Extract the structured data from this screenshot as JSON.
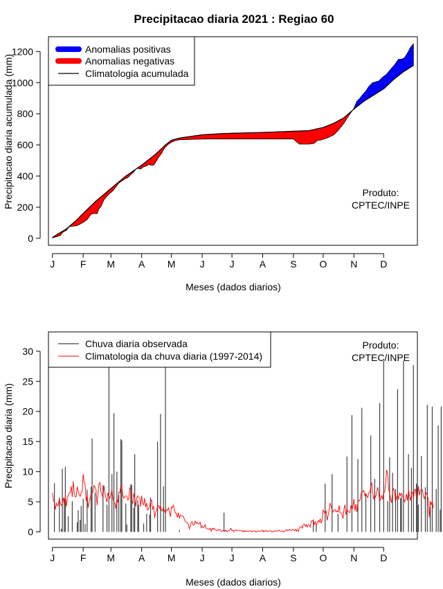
{
  "figure_title": "Precipitacao diaria 2021 : Regiao 60",
  "watermark": {
    "line1": "Produto:",
    "line2": "CPTEC/INPE"
  },
  "colors": {
    "positive": "#0000ff",
    "negative": "#ff0000",
    "climatology_line": "#000000",
    "observed_bars": "#404040",
    "daily_climatology": "#ff0000"
  },
  "chart_data": [
    {
      "type": "area",
      "id": "top",
      "ylabel": "Precipitacao diaria acumulada (mm)",
      "xlabel": "Meses (dados diarios)",
      "x_ticks": [
        "J",
        "F",
        "M",
        "A",
        "M",
        "J",
        "J",
        "A",
        "S",
        "O",
        "N",
        "D"
      ],
      "x_tick_days": [
        1,
        32,
        60,
        91,
        121,
        152,
        182,
        213,
        244,
        274,
        305,
        335
      ],
      "xlim": [
        -3,
        369
      ],
      "ylim": [
        -45,
        1295
      ],
      "y_ticks": [
        0,
        200,
        400,
        600,
        800,
        1000,
        1200
      ],
      "legend": [
        {
          "label": "Anomalias positivas",
          "kind": "positive"
        },
        {
          "label": "Anomalias negativas",
          "kind": "negative"
        },
        {
          "label": "Climatologia acumulada",
          "kind": "line"
        }
      ],
      "climatology_points": [
        [
          1,
          5
        ],
        [
          5,
          22
        ],
        [
          15,
          60
        ],
        [
          25,
          115
        ],
        [
          32,
          160
        ],
        [
          45,
          240
        ],
        [
          60,
          320
        ],
        [
          75,
          400
        ],
        [
          91,
          470
        ],
        [
          105,
          540
        ],
        [
          115,
          600
        ],
        [
          121,
          630
        ],
        [
          130,
          645
        ],
        [
          152,
          665
        ],
        [
          170,
          672
        ],
        [
          182,
          675
        ],
        [
          213,
          680
        ],
        [
          244,
          688
        ],
        [
          260,
          692
        ],
        [
          274,
          712
        ],
        [
          285,
          740
        ],
        [
          295,
          775
        ],
        [
          305,
          830
        ],
        [
          315,
          880
        ],
        [
          325,
          920
        ],
        [
          335,
          960
        ],
        [
          345,
          1020
        ],
        [
          355,
          1070
        ],
        [
          365,
          1110
        ]
      ],
      "observed_points": [
        [
          1,
          3
        ],
        [
          5,
          10
        ],
        [
          9,
          18
        ],
        [
          12,
          42
        ],
        [
          15,
          50
        ],
        [
          18,
          75
        ],
        [
          22,
          78
        ],
        [
          26,
          82
        ],
        [
          30,
          95
        ],
        [
          32,
          102
        ],
        [
          36,
          120
        ],
        [
          40,
          155
        ],
        [
          43,
          160
        ],
        [
          46,
          158
        ],
        [
          48,
          190
        ],
        [
          50,
          205
        ],
        [
          53,
          248
        ],
        [
          56,
          270
        ],
        [
          59,
          290
        ],
        [
          62,
          305
        ],
        [
          65,
          330
        ],
        [
          68,
          355
        ],
        [
          71,
          368
        ],
        [
          74,
          382
        ],
        [
          77,
          390
        ],
        [
          80,
          410
        ],
        [
          83,
          425
        ],
        [
          85,
          445
        ],
        [
          87,
          450
        ],
        [
          90,
          445
        ],
        [
          93,
          460
        ],
        [
          96,
          465
        ],
        [
          98,
          475
        ],
        [
          100,
          470
        ],
        [
          103,
          470
        ],
        [
          105,
          488
        ],
        [
          108,
          520
        ],
        [
          111,
          545
        ],
        [
          114,
          580
        ],
        [
          118,
          605
        ],
        [
          122,
          620
        ],
        [
          126,
          630
        ],
        [
          130,
          633
        ],
        [
          140,
          635
        ],
        [
          150,
          637
        ],
        [
          160,
          638
        ],
        [
          170,
          638
        ],
        [
          182,
          638
        ],
        [
          200,
          638
        ],
        [
          213,
          638
        ],
        [
          230,
          638
        ],
        [
          244,
          638
        ],
        [
          250,
          605
        ],
        [
          260,
          605
        ],
        [
          265,
          610
        ],
        [
          268,
          628
        ],
        [
          272,
          632
        ],
        [
          276,
          640
        ],
        [
          280,
          650
        ],
        [
          285,
          666
        ],
        [
          290,
          700
        ],
        [
          295,
          740
        ],
        [
          300,
          790
        ],
        [
          305,
          835
        ],
        [
          308,
          880
        ],
        [
          311,
          900
        ],
        [
          314,
          925
        ],
        [
          317,
          945
        ],
        [
          320,
          975
        ],
        [
          324,
          1000
        ],
        [
          327,
          1005
        ],
        [
          330,
          1010
        ],
        [
          334,
          1035
        ],
        [
          338,
          1055
        ],
        [
          342,
          1085
        ],
        [
          346,
          1115
        ],
        [
          350,
          1150
        ],
        [
          353,
          1150
        ],
        [
          356,
          1160
        ],
        [
          359,
          1190
        ],
        [
          362,
          1225
        ],
        [
          365,
          1250
        ]
      ]
    },
    {
      "type": "bar",
      "id": "bottom",
      "ylabel": "Precipitacao diaria (mm)",
      "xlabel": "Meses (dados diarios)",
      "x_ticks": [
        "J",
        "F",
        "M",
        "A",
        "M",
        "J",
        "J",
        "A",
        "S",
        "O",
        "N",
        "D"
      ],
      "x_tick_days": [
        1,
        32,
        60,
        91,
        121,
        152,
        182,
        213,
        244,
        274,
        305,
        335
      ],
      "xlim": [
        -3,
        369
      ],
      "ylim": [
        -1.2,
        33.2
      ],
      "y_ticks": [
        0,
        5,
        10,
        15,
        20,
        25,
        30
      ],
      "legend": [
        {
          "label": "Chuva diaria observada",
          "kind": "bars"
        },
        {
          "label": "Climatologia da chuva diaria (1997-2014)",
          "kind": "clim"
        }
      ],
      "observed_daily": [
        0,
        0,
        8.1,
        0,
        0,
        0,
        0,
        5.7,
        0,
        0.5,
        10.5,
        0,
        5.5,
        10.8,
        0,
        0,
        2.6,
        0,
        0,
        0,
        5.1,
        0,
        0,
        0,
        0,
        1.6,
        3.6,
        0,
        2.0,
        4.3,
        0,
        5.5,
        0,
        1.3,
        0,
        7.0,
        0,
        0,
        0,
        7.5,
        15.5,
        0,
        0,
        6.5,
        0,
        0,
        0,
        0,
        0,
        0,
        0,
        7.8,
        0,
        0,
        0,
        4.5,
        0,
        29.0,
        0,
        0,
        9.6,
        0,
        19.7,
        0,
        0,
        10.0,
        0,
        6.1,
        0,
        15.4,
        15.2,
        0,
        0,
        0,
        4.7,
        1.2,
        0,
        0,
        0,
        7.9,
        7.8,
        0,
        4.0,
        12.9,
        0,
        0,
        5.2,
        4.5,
        0,
        0,
        0,
        0,
        1.4,
        0,
        0,
        3.0,
        0,
        0,
        2.9,
        5.7,
        0,
        0,
        0,
        0,
        0,
        0,
        15.0,
        0,
        0,
        19.6,
        0,
        0,
        7.6,
        0,
        28.3,
        0,
        0,
        0,
        0,
        0,
        0,
        0,
        0,
        0,
        0,
        0,
        0,
        0,
        0.3,
        0,
        0,
        0,
        0,
        0,
        0,
        0,
        0,
        0,
        0,
        0,
        0,
        0,
        0,
        0,
        0,
        0,
        0,
        0,
        0,
        0,
        0,
        0,
        0,
        0,
        0,
        0,
        0,
        0,
        0,
        0,
        0,
        0,
        0,
        0,
        0,
        0,
        0,
        0,
        0,
        0,
        0,
        0,
        0,
        3.2,
        0,
        0,
        0,
        0,
        0,
        0,
        0,
        0,
        0,
        0,
        0,
        0,
        0,
        0,
        0,
        0,
        0,
        0,
        0,
        0,
        0,
        0,
        0,
        0,
        0,
        0,
        0,
        0,
        0,
        0,
        0,
        0,
        0,
        0,
        0,
        0,
        0,
        0,
        0,
        0,
        0,
        0,
        0,
        0,
        0,
        0,
        0,
        0,
        0,
        0,
        0,
        0,
        0,
        0,
        0,
        0,
        0,
        0,
        0,
        0,
        0,
        0,
        0,
        0,
        0,
        0,
        0,
        0,
        0,
        0,
        0,
        0,
        0,
        0,
        0,
        0,
        0,
        0,
        0,
        0,
        0,
        0,
        0,
        0,
        0,
        0,
        0,
        0,
        0,
        1.8,
        0,
        0,
        1.0,
        0,
        0,
        0,
        0,
        0,
        0,
        0,
        0,
        8.0,
        0,
        0,
        0,
        0,
        0,
        0,
        9.6,
        0,
        0,
        0,
        0,
        0,
        3.0,
        0,
        0,
        0,
        0,
        0,
        0,
        0,
        0,
        12.5,
        0,
        0,
        0,
        0,
        19.4,
        0,
        0,
        0,
        0,
        0,
        12.1,
        0,
        0,
        0,
        20.6,
        0,
        0,
        0,
        6.4,
        0,
        0,
        0,
        0,
        16.0,
        0,
        0,
        0,
        8.8,
        0,
        0,
        0,
        0,
        21.4,
        0,
        0,
        0,
        28.4,
        0,
        0,
        0,
        5.1,
        0,
        12.4,
        0,
        0,
        9.8,
        0,
        0,
        7.1,
        0,
        23.7,
        0,
        0,
        5.6,
        5.9,
        0,
        28.4,
        0,
        0,
        0,
        0,
        12.9,
        0,
        0,
        10.6,
        0,
        27.7,
        0,
        0,
        8.0,
        0,
        4.5,
        0,
        0,
        12.6,
        0,
        0,
        0,
        7.4,
        0,
        21.1,
        0,
        0,
        4.2,
        0,
        20.8,
        0,
        0,
        0,
        7.1,
        0,
        17.7,
        0,
        3.7,
        20.8,
        0,
        0
      ],
      "climatology_daily": [
        6.5,
        5.3,
        4.8,
        3.7,
        4.8,
        4.3,
        4.5,
        5.5,
        4.7,
        4.4,
        4.7,
        5.7,
        4.5,
        6.1,
        4.2,
        5.6,
        6.1,
        6.5,
        6.5,
        7.6,
        5.8,
        8.4,
        6.5,
        5.8,
        5.9,
        7.5,
        6.8,
        6.2,
        5.9,
        6.5,
        6.7,
        9.6,
        8.2,
        7.9,
        5.1,
        6.2,
        4.0,
        4.9,
        5.5,
        6.3,
        6.5,
        6.7,
        7.7,
        7.4,
        7.0,
        4.4,
        6.5,
        8.0,
        8.2,
        6.6,
        6.2,
        5.7,
        7.7,
        6.3,
        5.6,
        4.9,
        6.5,
        5.9,
        5.6,
        6.2,
        7.0,
        5.6,
        4.9,
        4.8,
        3.8,
        5.4,
        4.9,
        6.6,
        6.5,
        7.8,
        7.4,
        6.0,
        5.6,
        5.9,
        6.0,
        5.9,
        5.3,
        5.5,
        7.3,
        7.0,
        5.3,
        4.7,
        6.4,
        5.5,
        4.2,
        5.7,
        6.0,
        5.7,
        5.6,
        4.2,
        6.0,
        4.7,
        4.5,
        5.6,
        4.1,
        4.8,
        3.6,
        3.8,
        4.3,
        5.1,
        5.3,
        3.7,
        4.3,
        2.3,
        3.2,
        3.5,
        4.3,
        4.4,
        3.9,
        4.3,
        3.5,
        3.5,
        4.1,
        3.4,
        3.1,
        3.7,
        3.6,
        4.0,
        3.3,
        2.5,
        4.1,
        4.0,
        4.5,
        3.6,
        3.1,
        3.1,
        2.4,
        3.2,
        2.2,
        2.8,
        2.7,
        2.6,
        2.6,
        2.1,
        1.7,
        1.6,
        1.5,
        1.3,
        0.5,
        0.9,
        1.6,
        1.7,
        1.1,
        1.2,
        1.8,
        1.4,
        1.6,
        1.4,
        1.3,
        1.6,
        0.7,
        1.0,
        0.7,
        0.8,
        1.2,
        0.6,
        0.5,
        0.5,
        0.4,
        0.6,
        0.1,
        0.6,
        0.4,
        0.6,
        0.4,
        0.3,
        0.2,
        0.4,
        0.3,
        0.4,
        0.1,
        0.1,
        0.2,
        0.3,
        0.1,
        0.3,
        0,
        0.1,
        0.2,
        0.4,
        0.6,
        0.2,
        0.3,
        0,
        0.3,
        0.3,
        0.2,
        0.3,
        0.2,
        0.2,
        0.2,
        0.2,
        0,
        0.2,
        0,
        0.2,
        0.1,
        0.1,
        0.1,
        0.2,
        0.2,
        0,
        0.1,
        0.1,
        0.2,
        0,
        0,
        0.1,
        0.2,
        0.1,
        0.1,
        0.1,
        0.3,
        0,
        0.2,
        0.1,
        0.2,
        0.1,
        0.1,
        0.2,
        0.2,
        0,
        0,
        0,
        0.2,
        0.1,
        0.1,
        0.1,
        0.3,
        0.2,
        0.1,
        0.1,
        0.2,
        0,
        0.1,
        0.2,
        0.4,
        0.2,
        0.3,
        0.4,
        0.2,
        0.3,
        0.4,
        0.4,
        0.2,
        0.4,
        0.1,
        0.4,
        0.1,
        0.7,
        0.8,
        0.9,
        0.6,
        1.2,
        1.3,
        0.9,
        1.2,
        0.8,
        1.2,
        1.1,
        0.8,
        1.8,
        1.8,
        2.0,
        1.2,
        1.7,
        1.0,
        1.5,
        1.9,
        1.6,
        2.2,
        1.4,
        2.0,
        3.7,
        3.3,
        3.0,
        3.5,
        1.9,
        2.7,
        3.6,
        4.8,
        4.3,
        3.6,
        3.3,
        3.7,
        3.7,
        3.3,
        3.5,
        3.3,
        4.4,
        3.2,
        3.1,
        2.9,
        2.2,
        3.8,
        4.5,
        2.8,
        3.8,
        3.4,
        3.3,
        3.2,
        4.4,
        3.7,
        4.2,
        5.5,
        3.5,
        4.6,
        3.3,
        5.0,
        5.2,
        5.2,
        6.1,
        6.8,
        6.7,
        6.9,
        5.9,
        6.4,
        6.0,
        5.7,
        6.5,
        6.5,
        7.6,
        8.2,
        6.5,
        5.4,
        6.1,
        5.8,
        6.8,
        7.4,
        6.5,
        5.0,
        5.5,
        6.1,
        5.4,
        6.6,
        6.6,
        8.1,
        10.3,
        9.6,
        7.1,
        6.4,
        5.5,
        4.8,
        6.8,
        7.2,
        6.3,
        5.0,
        5.7,
        6.2,
        5.4,
        6.5,
        6.0,
        6.4,
        5.9,
        5.8,
        5.0,
        5.3,
        6.3,
        5.2,
        7.0,
        6.0,
        5.2,
        6.4,
        6.6,
        5.6,
        7.0,
        7.1,
        5.7,
        5.7,
        7.6,
        6.1,
        6.9,
        7.0,
        7.0,
        5.9,
        5.5,
        6.2,
        6.5,
        6.0,
        5.4,
        2.4,
        5.1,
        4.5,
        5.1,
        3.9
      ]
    }
  ]
}
